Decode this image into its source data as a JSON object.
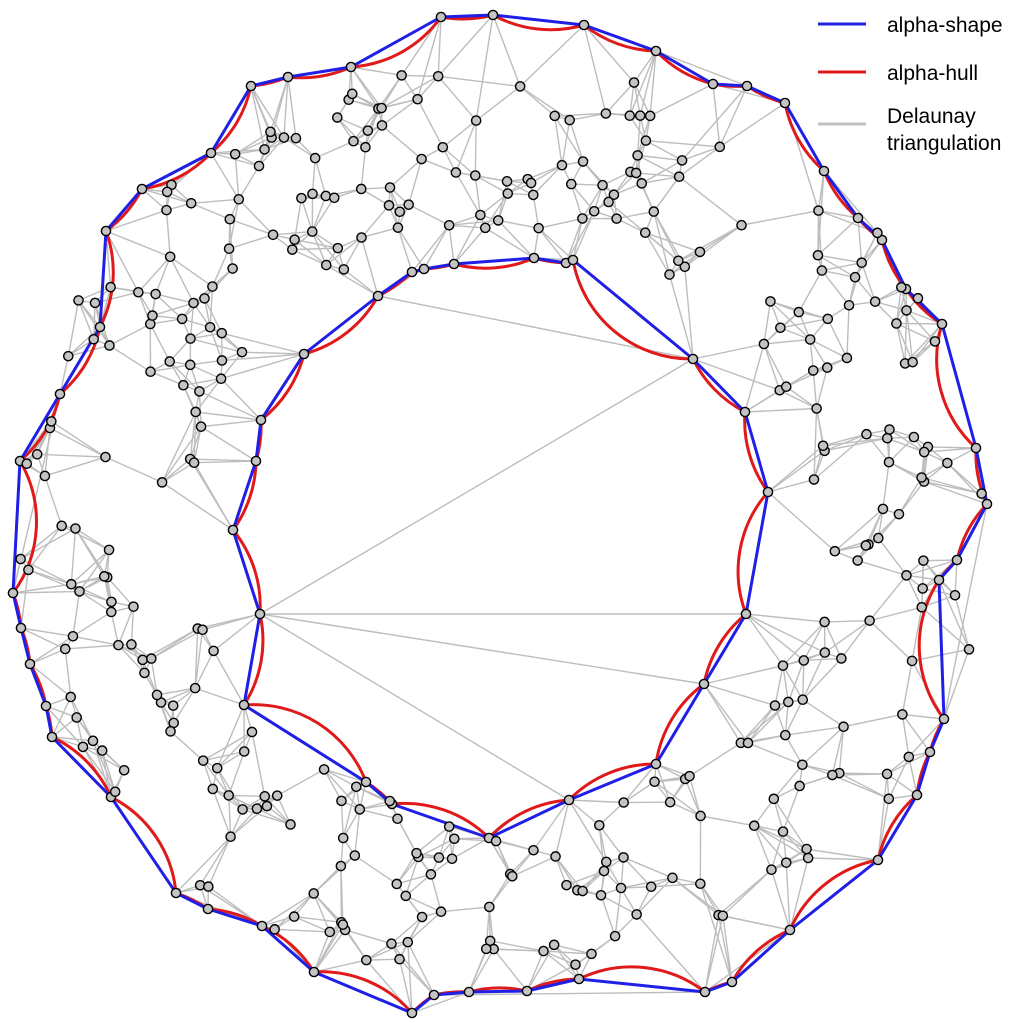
{
  "legend": {
    "items": [
      {
        "label": "alpha-shape",
        "color": "#1f1fe6"
      },
      {
        "label": "alpha-hull",
        "color": "#e01a1a"
      },
      {
        "label_lines": [
          "Delaunay",
          "triangulation"
        ],
        "color": "#c0c0c0"
      }
    ]
  },
  "colors": {
    "point_fill": "#c4c4c4",
    "point_stroke": "#000000"
  }
}
